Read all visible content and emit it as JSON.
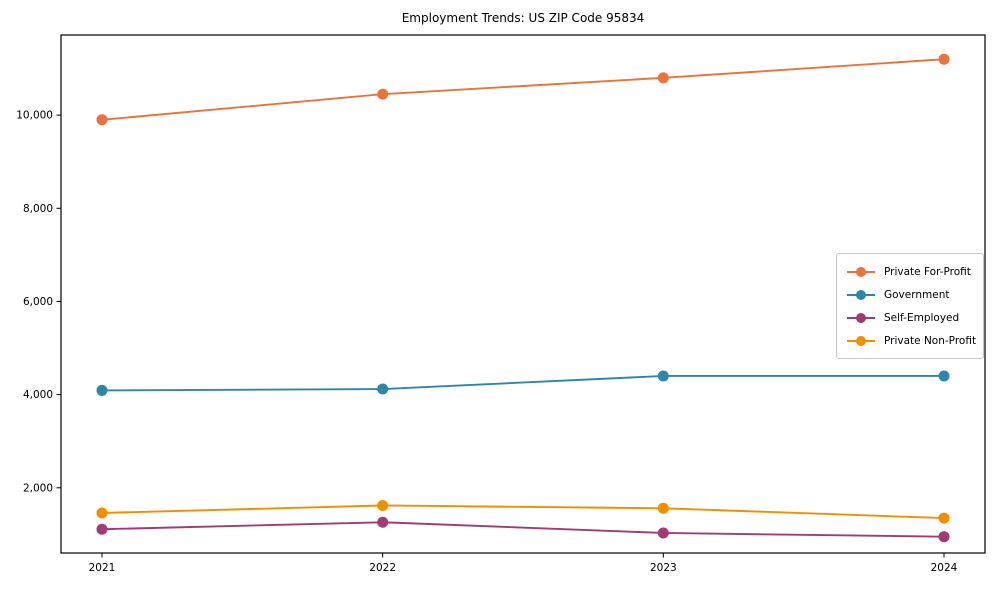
{
  "chart_data": {
    "type": "line",
    "title": "Employment Trends: US ZIP Code 95834",
    "xlabel": "",
    "ylabel": "",
    "categories": [
      "2021",
      "2022",
      "2023",
      "2024"
    ],
    "series": [
      {
        "name": "Private For-Profit",
        "color": "#E8743B",
        "values": [
          9900,
          10450,
          10800,
          11200
        ]
      },
      {
        "name": "Government",
        "color": "#2E86AB",
        "values": [
          4090,
          4120,
          4400,
          4400
        ]
      },
      {
        "name": "Self-Employed",
        "color": "#A23B72",
        "values": [
          1110,
          1260,
          1030,
          950
        ]
      },
      {
        "name": "Private Non-Profit",
        "color": "#F18F01",
        "values": [
          1460,
          1620,
          1560,
          1350
        ]
      }
    ],
    "yticks": [
      {
        "value": 2000,
        "label": "2,000"
      },
      {
        "value": 4000,
        "label": "4,000"
      },
      {
        "value": 6000,
        "label": "6,000"
      },
      {
        "value": 8000,
        "label": "8,000"
      },
      {
        "value": 10000,
        "label": "10,000"
      }
    ],
    "ylim": [
      600,
      11720
    ],
    "grid": false,
    "marker": "circle",
    "legend_position": "center right",
    "axis_color": "#000000"
  }
}
